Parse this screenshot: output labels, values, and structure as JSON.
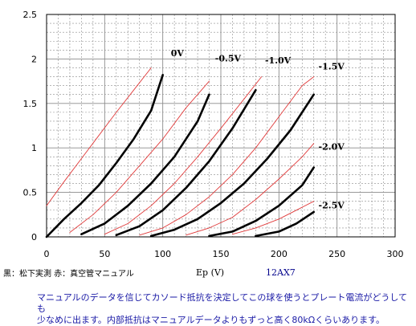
{
  "chart_data": {
    "type": "line",
    "xlabel": "Ep (V)",
    "ylabel": "",
    "xlim": [
      0,
      300
    ],
    "ylim": [
      0,
      2.5
    ],
    "x_ticks": [
      0,
      50,
      100,
      150,
      200,
      250,
      300
    ],
    "y_ticks": [
      0,
      0.5,
      1,
      1.5,
      2,
      2.5
    ],
    "y_tick_labels": [
      "0",
      "0.5",
      "1",
      "1.5",
      "2",
      "2.5"
    ],
    "grid": "dashed minor grid",
    "tube": "12AX7",
    "series": [
      {
        "name": "0V",
        "kind": "measured",
        "x": [
          0,
          15,
          30,
          45,
          60,
          75,
          90,
          100
        ],
        "y": [
          0,
          0.2,
          0.38,
          0.58,
          0.83,
          1.1,
          1.42,
          1.82
        ]
      },
      {
        "name": "0V",
        "kind": "manual",
        "x": [
          0,
          15,
          30,
          45,
          60,
          75,
          90
        ],
        "y": [
          0.35,
          0.62,
          0.88,
          1.14,
          1.4,
          1.65,
          1.9
        ]
      },
      {
        "name": "-0.5V",
        "kind": "measured",
        "x": [
          30,
          50,
          70,
          90,
          110,
          130,
          140
        ],
        "y": [
          0.03,
          0.15,
          0.35,
          0.6,
          0.9,
          1.3,
          1.6
        ]
      },
      {
        "name": "-0.5V",
        "kind": "manual",
        "x": [
          20,
          40,
          60,
          80,
          100,
          120,
          140
        ],
        "y": [
          0.05,
          0.25,
          0.5,
          0.8,
          1.1,
          1.45,
          1.75
        ]
      },
      {
        "name": "-1.0V",
        "kind": "measured",
        "x": [
          60,
          80,
          100,
          120,
          140,
          160,
          180
        ],
        "y": [
          0.02,
          0.12,
          0.3,
          0.55,
          0.85,
          1.22,
          1.65
        ]
      },
      {
        "name": "-1.0V",
        "kind": "manual",
        "x": [
          50,
          70,
          90,
          110,
          130,
          150,
          170,
          185
        ],
        "y": [
          0.03,
          0.15,
          0.35,
          0.6,
          0.9,
          1.22,
          1.55,
          1.8
        ]
      },
      {
        "name": "-1.5V",
        "kind": "measured",
        "x": [
          90,
          110,
          130,
          150,
          170,
          190,
          210,
          230
        ],
        "y": [
          0.01,
          0.08,
          0.2,
          0.38,
          0.6,
          0.88,
          1.2,
          1.6
        ]
      },
      {
        "name": "-1.5V",
        "kind": "manual",
        "x": [
          80,
          100,
          120,
          140,
          160,
          180,
          200,
          220,
          230
        ],
        "y": [
          0.02,
          0.1,
          0.25,
          0.45,
          0.7,
          1.0,
          1.35,
          1.7,
          1.8
        ]
      },
      {
        "name": "-2.0V",
        "kind": "measured",
        "x": [
          140,
          160,
          180,
          200,
          220,
          230
        ],
        "y": [
          0.01,
          0.06,
          0.18,
          0.35,
          0.58,
          0.78
        ]
      },
      {
        "name": "-2.0V",
        "kind": "manual",
        "x": [
          120,
          140,
          160,
          180,
          200,
          220,
          230
        ],
        "y": [
          0.02,
          0.1,
          0.22,
          0.42,
          0.65,
          0.9,
          1.05
        ]
      },
      {
        "name": "-2.5V",
        "kind": "measured",
        "x": [
          180,
          200,
          215,
          230
        ],
        "y": [
          0.01,
          0.06,
          0.15,
          0.28
        ]
      },
      {
        "name": "-2.5V",
        "kind": "manual",
        "x": [
          160,
          180,
          200,
          215,
          230
        ],
        "y": [
          0.03,
          0.1,
          0.2,
          0.3,
          0.4
        ]
      }
    ],
    "curve_labels": [
      {
        "text": "0V",
        "x": 107,
        "y": 2.03
      },
      {
        "text": "-0.5V",
        "x": 145,
        "y": 1.97
      },
      {
        "text": "-1.0V",
        "x": 188,
        "y": 1.95
      },
      {
        "text": "-1.5V",
        "x": 234,
        "y": 1.88
      },
      {
        "text": "-2.0V",
        "x": 234,
        "y": 0.98
      },
      {
        "text": "-2.5V",
        "x": 234,
        "y": 0.32
      }
    ],
    "colors": {
      "measured": "#000000",
      "manual": "#e03a3a",
      "grid": "#8c8c8c",
      "axis": "#000000"
    }
  },
  "legend_text": "黒：松下実測 赤：真空管マニュアル",
  "xlabel_text": "Ep (V)",
  "tube_label": "12AX7",
  "note": {
    "line1": "マニュアルのデータを信じてカソード抵抗を決定してこの球を使うとプレート電流がどうしても",
    "line2": "少なめに出ます。内部抵抗はマニュアルデータよりもずっと高く80kΩくらいあります。"
  }
}
